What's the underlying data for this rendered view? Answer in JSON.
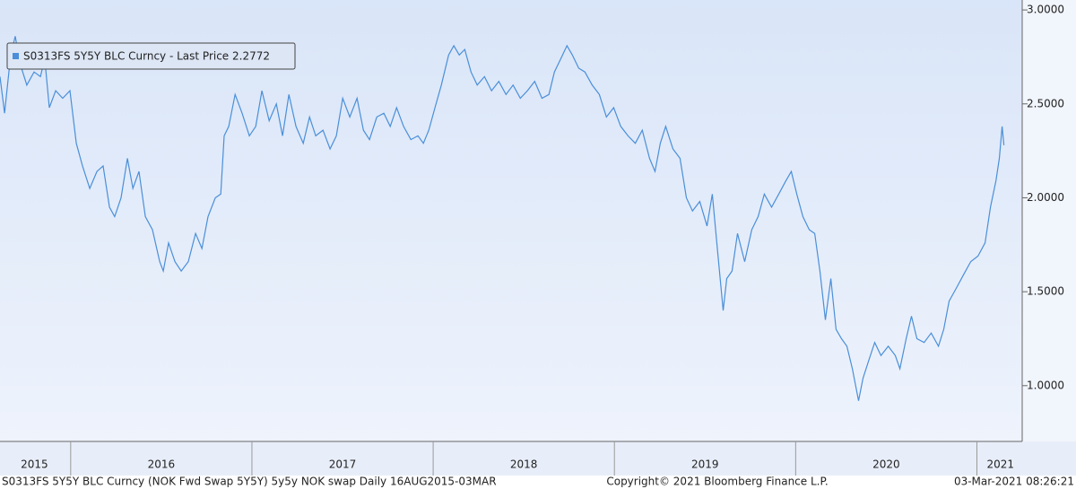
{
  "chart_data": {
    "type": "line",
    "series": [
      {
        "name": "S0313FS 5Y5Y BLC Curncy - Last Price 2.2772",
        "color": "#4a8fd8",
        "x": [
          2015.61,
          2015.635,
          2015.669,
          2015.694,
          2015.719,
          2015.758,
          2015.798,
          2015.833,
          2015.857,
          2015.882,
          2015.917,
          2015.956,
          2015.996,
          2016.031,
          2016.065,
          2016.105,
          2016.145,
          2016.179,
          2016.214,
          2016.243,
          2016.278,
          2016.313,
          2016.343,
          2016.377,
          2016.412,
          2016.451,
          2016.491,
          2016.511,
          2016.54,
          2016.575,
          2016.61,
          2016.649,
          2016.689,
          2016.724,
          2016.758,
          2016.798,
          2016.828,
          2016.847,
          2016.872,
          2016.907,
          2016.946,
          2016.986,
          2017.021,
          2017.055,
          2017.095,
          2017.135,
          2017.169,
          2017.204,
          2017.243,
          2017.283,
          2017.318,
          2017.352,
          2017.392,
          2017.431,
          2017.466,
          2017.501,
          2017.54,
          2017.58,
          2017.615,
          2017.649,
          2017.689,
          2017.728,
          2017.763,
          2017.798,
          2017.837,
          2017.877,
          2017.916,
          2017.946,
          2017.976,
          2018.01,
          2018.045,
          2018.085,
          2018.114,
          2018.144,
          2018.174,
          2018.209,
          2018.243,
          2018.283,
          2018.322,
          2018.362,
          2018.402,
          2018.441,
          2018.481,
          2018.52,
          2018.56,
          2018.6,
          2018.639,
          2018.669,
          2018.704,
          2018.738,
          2018.768,
          2018.803,
          2018.837,
          2018.877,
          2018.917,
          2018.956,
          2018.996,
          2019.035,
          2019.075,
          2019.115,
          2019.154,
          2019.194,
          2019.224,
          2019.253,
          2019.283,
          2019.323,
          2019.362,
          2019.397,
          2019.431,
          2019.471,
          2019.511,
          2019.54,
          2019.57,
          2019.6,
          2019.62,
          2019.649,
          2019.679,
          2019.719,
          2019.758,
          2019.793,
          2019.827,
          2019.867,
          2019.907,
          2019.946,
          2019.976,
          2020.006,
          2020.04,
          2020.075,
          2020.105,
          2020.134,
          2020.164,
          2020.194,
          2020.223,
          2020.253,
          2020.283,
          2020.313,
          2020.347,
          2020.372,
          2020.402,
          2020.436,
          2020.471,
          2020.511,
          2020.55,
          2020.575,
          2020.61,
          2020.639,
          2020.669,
          2020.709,
          2020.748,
          2020.788,
          2020.817,
          2020.847,
          2020.887,
          2020.926,
          2020.966,
          2021.006,
          2021.045,
          2021.075,
          2021.105,
          2021.124,
          2021.139,
          2021.149
        ],
        "values": [
          2.645,
          2.45,
          2.76,
          2.86,
          2.72,
          2.6,
          2.67,
          2.645,
          2.74,
          2.48,
          2.57,
          2.53,
          2.57,
          2.29,
          2.17,
          2.05,
          2.14,
          2.17,
          1.95,
          1.9,
          2.0,
          2.21,
          2.05,
          2.14,
          1.9,
          1.83,
          1.66,
          1.61,
          1.76,
          1.66,
          1.61,
          1.66,
          1.81,
          1.73,
          1.9,
          2.0,
          2.02,
          2.33,
          2.38,
          2.55,
          2.45,
          2.33,
          2.38,
          2.57,
          2.41,
          2.5,
          2.33,
          2.55,
          2.38,
          2.29,
          2.43,
          2.33,
          2.36,
          2.26,
          2.33,
          2.53,
          2.43,
          2.53,
          2.36,
          2.31,
          2.43,
          2.45,
          2.38,
          2.48,
          2.38,
          2.31,
          2.33,
          2.29,
          2.36,
          2.48,
          2.6,
          2.76,
          2.81,
          2.76,
          2.79,
          2.67,
          2.6,
          2.645,
          2.57,
          2.62,
          2.55,
          2.6,
          2.53,
          2.57,
          2.62,
          2.53,
          2.55,
          2.67,
          2.74,
          2.81,
          2.76,
          2.69,
          2.67,
          2.6,
          2.55,
          2.43,
          2.48,
          2.38,
          2.33,
          2.29,
          2.36,
          2.21,
          2.14,
          2.29,
          2.38,
          2.26,
          2.21,
          2.0,
          1.93,
          1.98,
          1.85,
          2.02,
          1.71,
          1.4,
          1.57,
          1.61,
          1.81,
          1.66,
          1.83,
          1.9,
          2.02,
          1.95,
          2.02,
          2.09,
          2.14,
          2.02,
          1.9,
          1.83,
          1.81,
          1.61,
          1.35,
          1.57,
          1.3,
          1.25,
          1.21,
          1.09,
          0.92,
          1.04,
          1.13,
          1.23,
          1.16,
          1.21,
          1.16,
          1.09,
          1.25,
          1.37,
          1.25,
          1.23,
          1.28,
          1.21,
          1.3,
          1.45,
          1.52,
          1.59,
          1.66,
          1.69,
          1.76,
          1.95,
          2.09,
          2.21,
          2.38,
          2.28
        ]
      }
    ],
    "xlim": [
      2015.61,
      2021.25
    ],
    "xticks": [
      {
        "value": 2015.8,
        "label": "2015"
      },
      {
        "value": 2016.5,
        "label": "2016"
      },
      {
        "value": 2017.5,
        "label": "2017"
      },
      {
        "value": 2018.5,
        "label": "2018"
      },
      {
        "value": 2019.5,
        "label": "2019"
      },
      {
        "value": 2020.5,
        "label": "2020"
      },
      {
        "value": 2021.13,
        "label": "2021"
      }
    ],
    "ylim": [
      0.703,
      3.053
    ],
    "yticks": [
      {
        "value": 1,
        "label": "1.0000"
      },
      {
        "value": 1.5,
        "label": "1.5000"
      },
      {
        "value": 2,
        "label": "2.0000"
      },
      {
        "value": 2.5,
        "label": "2.5000"
      },
      {
        "value": 3,
        "label": "3.0000"
      }
    ],
    "grid": false,
    "legend": "top-left",
    "footer": {
      "left": "S0313FS 5Y5Y BLC Curncy (NOK Fwd Swap 5Y5Y) 5y5y NOK swap  Daily 16AUG2015-03MAR",
      "center": "Copyright© 2021 Bloomberg Finance L.P.",
      "right": "03-Mar-2021 08:26:21"
    }
  }
}
